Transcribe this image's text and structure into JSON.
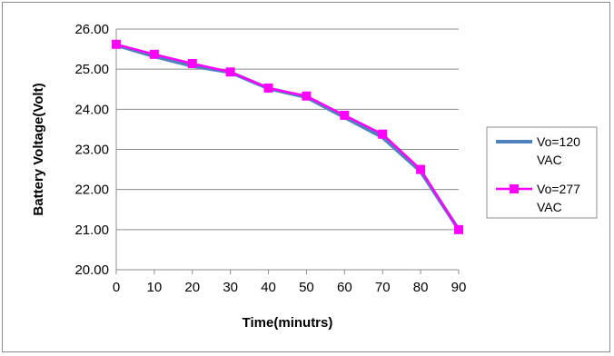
{
  "chart_data": {
    "type": "line",
    "xlabel": "Time(minutrs)",
    "ylabel": "Battery Voltage(Volt)",
    "x": [
      0,
      10,
      20,
      30,
      40,
      50,
      60,
      70,
      80,
      90
    ],
    "xlim": [
      0,
      90
    ],
    "ylim": [
      20,
      26
    ],
    "y_ticks": [
      "20.00",
      "21.00",
      "22.00",
      "23.00",
      "24.00",
      "25.00",
      "26.00"
    ],
    "x_ticks": [
      "0",
      "10",
      "20",
      "30",
      "40",
      "50",
      "60",
      "70",
      "80",
      "90"
    ],
    "grid": "horizontal",
    "legend_position": "right",
    "series": [
      {
        "name": "Vo=120 VAC",
        "legend_lines": [
          "Vo=120",
          "VAC"
        ],
        "color": "#4f81bd",
        "marker": "none",
        "values": [
          25.6,
          25.32,
          25.08,
          24.92,
          24.52,
          24.3,
          23.8,
          23.3,
          22.45,
          21.0
        ]
      },
      {
        "name": "Vo=277 VAC",
        "legend_lines": [
          "Vo=277",
          "VAC"
        ],
        "color": "#ff00ff",
        "marker": "square",
        "values": [
          25.62,
          25.37,
          25.14,
          24.93,
          24.53,
          24.33,
          23.85,
          23.38,
          22.5,
          21.0
        ]
      }
    ]
  }
}
